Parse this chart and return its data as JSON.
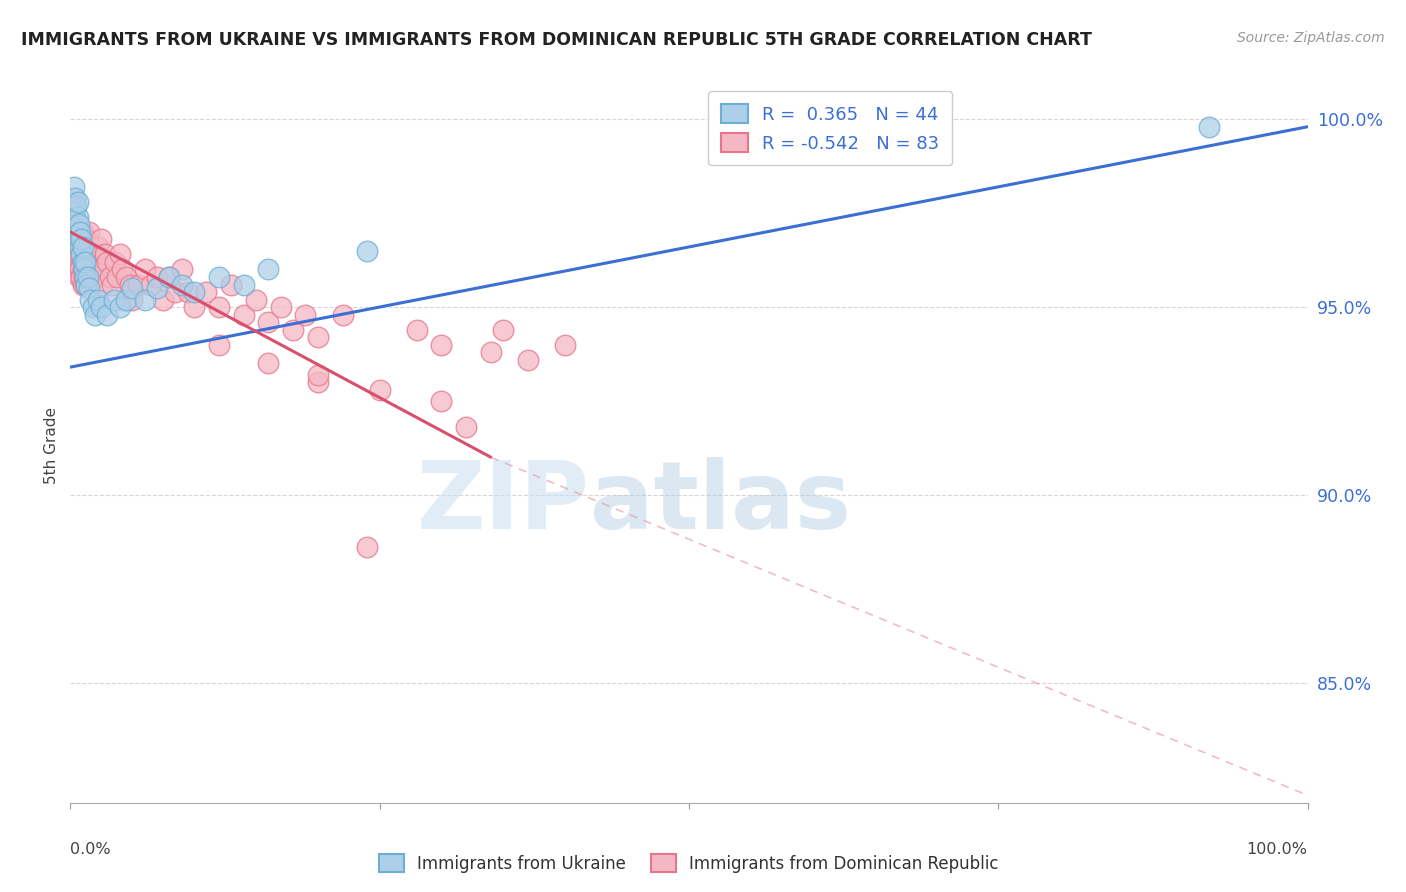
{
  "title": "IMMIGRANTS FROM UKRAINE VS IMMIGRANTS FROM DOMINICAN REPUBLIC 5TH GRADE CORRELATION CHART",
  "source_text": "Source: ZipAtlas.com",
  "ylabel": "5th Grade",
  "ytick_values": [
    1.0,
    0.95,
    0.9,
    0.85
  ],
  "ytick_labels": [
    "100.0%",
    "95.0%",
    "90.0%",
    "85.0%"
  ],
  "xlim": [
    0.0,
    1.0
  ],
  "ylim": [
    0.818,
    1.008
  ],
  "ukraine_color": "#6baed6",
  "ukraine_color_fill": "#aecfe8",
  "dr_color": "#e8758a",
  "dr_color_fill": "#f4b8c5",
  "uk_R": 0.365,
  "uk_N": 44,
  "dr_R": -0.542,
  "dr_N": 83,
  "grid_color": "#cccccc",
  "background_color": "#ffffff",
  "uk_x": [
    0.002,
    0.003,
    0.003,
    0.004,
    0.004,
    0.005,
    0.005,
    0.006,
    0.006,
    0.006,
    0.007,
    0.007,
    0.008,
    0.008,
    0.009,
    0.009,
    0.01,
    0.01,
    0.011,
    0.012,
    0.012,
    0.013,
    0.014,
    0.015,
    0.016,
    0.018,
    0.02,
    0.022,
    0.025,
    0.03,
    0.035,
    0.04,
    0.045,
    0.05,
    0.06,
    0.07,
    0.08,
    0.09,
    0.1,
    0.12,
    0.14,
    0.16,
    0.24,
    0.92
  ],
  "uk_y": [
    0.975,
    0.978,
    0.982,
    0.976,
    0.979,
    0.973,
    0.977,
    0.97,
    0.974,
    0.978,
    0.968,
    0.972,
    0.966,
    0.97,
    0.964,
    0.968,
    0.962,
    0.966,
    0.96,
    0.958,
    0.962,
    0.956,
    0.958,
    0.955,
    0.952,
    0.95,
    0.948,
    0.952,
    0.95,
    0.948,
    0.952,
    0.95,
    0.952,
    0.955,
    0.952,
    0.955,
    0.958,
    0.956,
    0.954,
    0.958,
    0.956,
    0.96,
    0.965,
    0.998
  ],
  "uk_line_x": [
    0.0,
    1.0
  ],
  "uk_line_y": [
    0.934,
    0.998
  ],
  "dr_x": [
    0.002,
    0.003,
    0.003,
    0.004,
    0.004,
    0.005,
    0.005,
    0.006,
    0.006,
    0.007,
    0.007,
    0.007,
    0.008,
    0.008,
    0.009,
    0.009,
    0.01,
    0.01,
    0.01,
    0.011,
    0.011,
    0.012,
    0.012,
    0.013,
    0.013,
    0.014,
    0.015,
    0.016,
    0.017,
    0.018,
    0.019,
    0.02,
    0.021,
    0.022,
    0.024,
    0.025,
    0.026,
    0.028,
    0.03,
    0.032,
    0.034,
    0.036,
    0.038,
    0.04,
    0.042,
    0.045,
    0.048,
    0.05,
    0.055,
    0.06,
    0.065,
    0.07,
    0.075,
    0.08,
    0.085,
    0.09,
    0.095,
    0.1,
    0.11,
    0.12,
    0.13,
    0.14,
    0.15,
    0.16,
    0.17,
    0.18,
    0.19,
    0.2,
    0.22,
    0.24,
    0.28,
    0.3,
    0.34,
    0.35,
    0.37,
    0.4,
    0.2,
    0.16,
    0.12,
    0.3,
    0.2,
    0.25,
    0.32
  ],
  "dr_y": [
    0.968,
    0.972,
    0.966,
    0.97,
    0.964,
    0.968,
    0.962,
    0.966,
    0.96,
    0.964,
    0.958,
    0.97,
    0.96,
    0.968,
    0.958,
    0.964,
    0.96,
    0.956,
    0.97,
    0.958,
    0.966,
    0.962,
    0.956,
    0.968,
    0.96,
    0.964,
    0.97,
    0.96,
    0.966,
    0.958,
    0.964,
    0.962,
    0.958,
    0.966,
    0.96,
    0.968,
    0.956,
    0.964,
    0.962,
    0.958,
    0.956,
    0.962,
    0.958,
    0.964,
    0.96,
    0.958,
    0.956,
    0.952,
    0.956,
    0.96,
    0.956,
    0.958,
    0.952,
    0.958,
    0.954,
    0.96,
    0.954,
    0.95,
    0.954,
    0.95,
    0.956,
    0.948,
    0.952,
    0.946,
    0.95,
    0.944,
    0.948,
    0.942,
    0.948,
    0.886,
    0.944,
    0.94,
    0.938,
    0.944,
    0.936,
    0.94,
    0.93,
    0.935,
    0.94,
    0.925,
    0.932,
    0.928,
    0.918
  ],
  "dr_solid_line_x": [
    0.0,
    0.34
  ],
  "dr_solid_line_y": [
    0.97,
    0.91
  ],
  "dr_dash_line_x": [
    0.34,
    1.0
  ],
  "dr_dash_line_y": [
    0.91,
    0.82
  ],
  "watermark_zip": "ZIP",
  "watermark_atlas": "atlas"
}
